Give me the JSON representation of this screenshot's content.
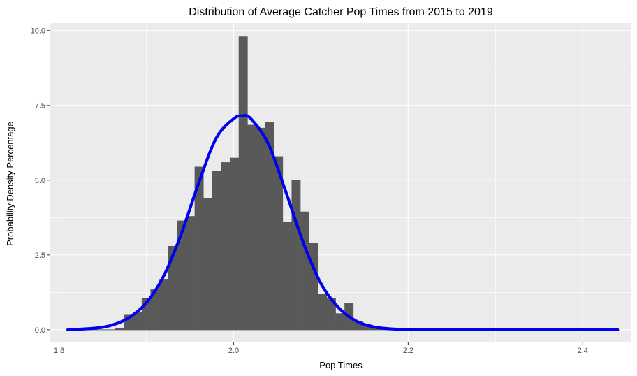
{
  "chart_data": {
    "type": "bar",
    "title": "Distribution of Average Catcher Pop Times from 2015 to 2019",
    "xlabel": "Pop Times",
    "ylabel": "Probability Density Percentage",
    "xlim": [
      1.79,
      2.455
    ],
    "ylim": [
      -0.4,
      10.25
    ],
    "x_ticks": [
      1.8,
      2.0,
      2.2,
      2.4
    ],
    "x_tick_labels": [
      "1.8",
      "2.0",
      "2.2",
      "2.4"
    ],
    "y_ticks": [
      0,
      2.5,
      5,
      7.5,
      10
    ],
    "y_tick_labels": [
      "0.0",
      "2.5",
      "5.0",
      "7.5",
      "10.0"
    ],
    "grid": true,
    "legend": "none",
    "colors": {
      "panel": "#ebebeb",
      "grid": "#ffffff",
      "bars": "#595959",
      "density_line": "#0000ee",
      "tick": "#333333"
    },
    "histogram": {
      "bin_width": 0.0101,
      "bin_centers": [
        1.8695,
        1.8796,
        1.8897,
        1.8998,
        1.9099,
        1.92,
        1.9301,
        1.9402,
        1.9503,
        1.9604,
        1.9705,
        1.9806,
        1.9907,
        2.0008,
        2.0109,
        2.021,
        2.0311,
        2.0412,
        2.0513,
        2.0614,
        2.0715,
        2.0816,
        2.0917,
        2.1018,
        2.1119,
        2.122,
        2.1321,
        2.1422,
        2.1523,
        2.1624,
        2.1725
      ],
      "values": [
        0.05,
        0.5,
        0.6,
        1.05,
        1.35,
        1.7,
        2.8,
        3.65,
        3.8,
        5.45,
        4.4,
        5.3,
        5.6,
        5.75,
        9.8,
        6.85,
        6.75,
        6.95,
        5.8,
        3.6,
        5.0,
        3.95,
        2.9,
        1.2,
        1.05,
        0.55,
        0.9,
        0.3,
        0.2,
        0.05,
        0.02
      ]
    },
    "density": {
      "x": [
        1.81,
        1.84,
        1.86,
        1.88,
        1.9,
        1.92,
        1.94,
        1.96,
        1.98,
        2.0,
        2.01,
        2.02,
        2.04,
        2.06,
        2.08,
        2.1,
        2.12,
        2.14,
        2.16,
        2.18,
        2.2,
        2.25,
        2.3,
        2.35,
        2.4,
        2.44
      ],
      "y": [
        0.0,
        0.05,
        0.15,
        0.4,
        0.9,
        1.8,
        3.2,
        4.9,
        6.4,
        7.05,
        7.15,
        7.05,
        6.2,
        4.6,
        2.9,
        1.55,
        0.75,
        0.3,
        0.1,
        0.03,
        0.01,
        0.0,
        0.0,
        0.0,
        0.0,
        0.0
      ]
    }
  }
}
